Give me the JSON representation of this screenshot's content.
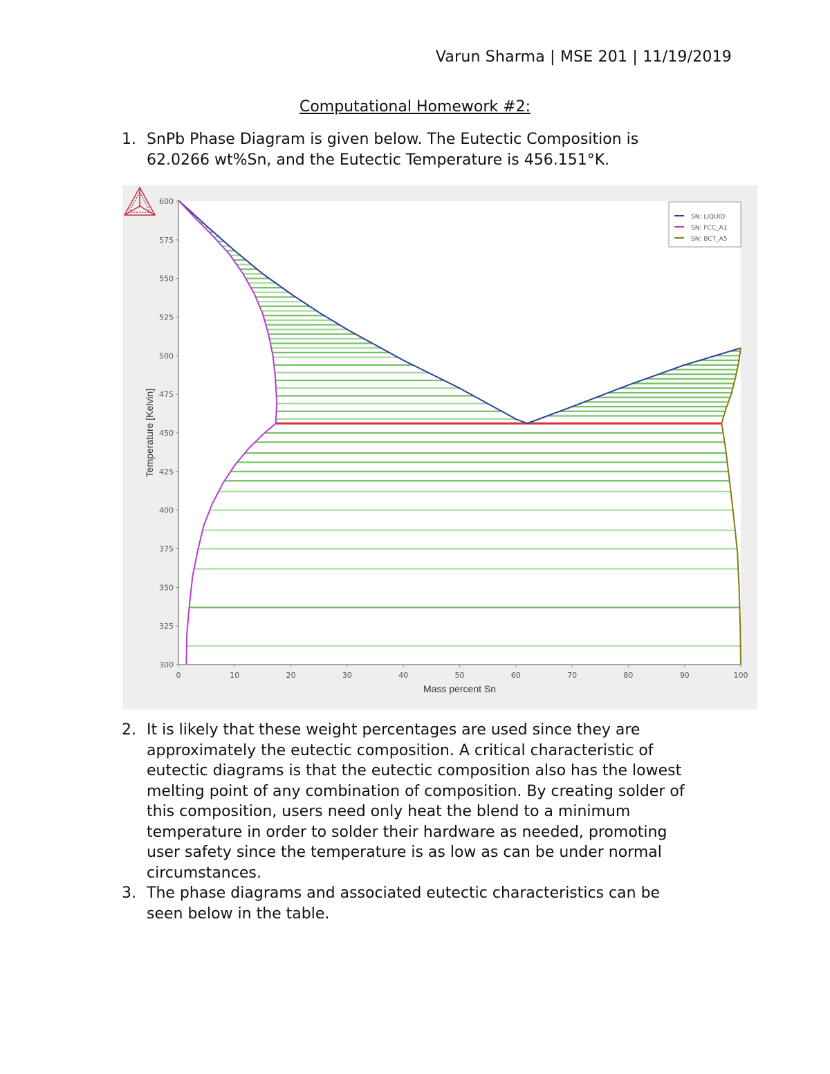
{
  "header": {
    "text": "Varun Sharma | MSE 201 | 11/19/2019"
  },
  "title": "Computational Homework #2:",
  "items": [
    {
      "num": "1.",
      "lines": [
        "SnPb Phase Diagram is given below. The Eutectic Composition is",
        "62.0266 wt%Sn, and the Eutectic Temperature is 456.151°K."
      ]
    },
    {
      "num": "2.",
      "lines": [
        "It is likely that these weight percentages are used since they are",
        "approximately the eutectic composition. A critical characteristic of",
        "eutectic diagrams is that the eutectic composition also has the lowest",
        "melting point of any combination of composition. By creating solder of",
        "this composition, users need only heat the blend to a minimum",
        "temperature in order to solder their hardware as needed, promoting",
        "user safety since the temperature is as low as can be under normal",
        "circumstances."
      ]
    },
    {
      "num": "3.",
      "lines": [
        "The phase diagrams and associated eutectic characteristics can be",
        "seen below in the table."
      ]
    }
  ],
  "chart_data": {
    "type": "line",
    "title": "",
    "xlabel": "Mass percent Sn",
    "ylabel": "Temperature [Kelvin]",
    "xlim": [
      0,
      100
    ],
    "ylim": [
      300,
      600
    ],
    "x_ticks": [
      0,
      10,
      20,
      30,
      40,
      50,
      60,
      70,
      80,
      90,
      100
    ],
    "y_ticks": [
      300,
      325,
      350,
      375,
      400,
      425,
      450,
      475,
      500,
      525,
      550,
      575,
      600
    ],
    "grid": false,
    "legend_position": "upper right",
    "legend": [
      "SN: LIQUID",
      "SN: FCC_A1",
      "SN: BCT_A5"
    ],
    "colors": {
      "liquid": "#2b3fa0",
      "fcc_a1": "#b040c8",
      "bct_a5": "#8a7a10",
      "tieline": "#5cb84a",
      "eutectic": "#e03030"
    },
    "series": [
      {
        "name": "SN: LIQUID",
        "color": "#2b3fa0",
        "points": [
          [
            0,
            600.6
          ],
          [
            5,
            584
          ],
          [
            10,
            568
          ],
          [
            15,
            553
          ],
          [
            20,
            540
          ],
          [
            25,
            528
          ],
          [
            30,
            517
          ],
          [
            35,
            507
          ],
          [
            40,
            497
          ],
          [
            45,
            488
          ],
          [
            50,
            479
          ],
          [
            55,
            469
          ],
          [
            60,
            459
          ],
          [
            62.03,
            456.15
          ],
          [
            70,
            467
          ],
          [
            80,
            481
          ],
          [
            90,
            494
          ],
          [
            100,
            505
          ]
        ]
      },
      {
        "name": "SN: FCC_A1",
        "color": "#b040c8",
        "points": [
          [
            0,
            600.6
          ],
          [
            3,
            589
          ],
          [
            6,
            578
          ],
          [
            9,
            566
          ],
          [
            11.5,
            553
          ],
          [
            13.5,
            540
          ],
          [
            15,
            527
          ],
          [
            16,
            514
          ],
          [
            16.8,
            500
          ],
          [
            17.2,
            487
          ],
          [
            17.5,
            470
          ],
          [
            17.3,
            456.15
          ],
          [
            15,
            449
          ],
          [
            12.5,
            440
          ],
          [
            10,
            429
          ],
          [
            8,
            418
          ],
          [
            6,
            404
          ],
          [
            4.5,
            390
          ],
          [
            3.5,
            375
          ],
          [
            2.5,
            357
          ],
          [
            2,
            340
          ],
          [
            1.5,
            320
          ],
          [
            1.4,
            300
          ]
        ]
      },
      {
        "name": "SN: BCT_A5",
        "color": "#8a7a10",
        "points": [
          [
            100,
            505
          ],
          [
            99.6,
            495
          ],
          [
            99,
            485
          ],
          [
            98.3,
            475
          ],
          [
            97.3,
            465
          ],
          [
            96.6,
            456.15
          ],
          [
            97,
            447
          ],
          [
            97.4,
            437
          ],
          [
            97.8,
            425
          ],
          [
            98.2,
            413
          ],
          [
            98.6,
            400
          ],
          [
            99,
            387
          ],
          [
            99.4,
            373
          ],
          [
            99.7,
            350
          ],
          [
            99.9,
            325
          ],
          [
            100,
            300
          ]
        ]
      },
      {
        "name": "Eutectic",
        "color": "#e03030",
        "points": [
          [
            17.3,
            456.15
          ],
          [
            96.6,
            456.15
          ]
        ]
      }
    ],
    "eutectic": {
      "composition_wt_pct_sn": 62.0266,
      "temperature_K": 456.151
    }
  }
}
